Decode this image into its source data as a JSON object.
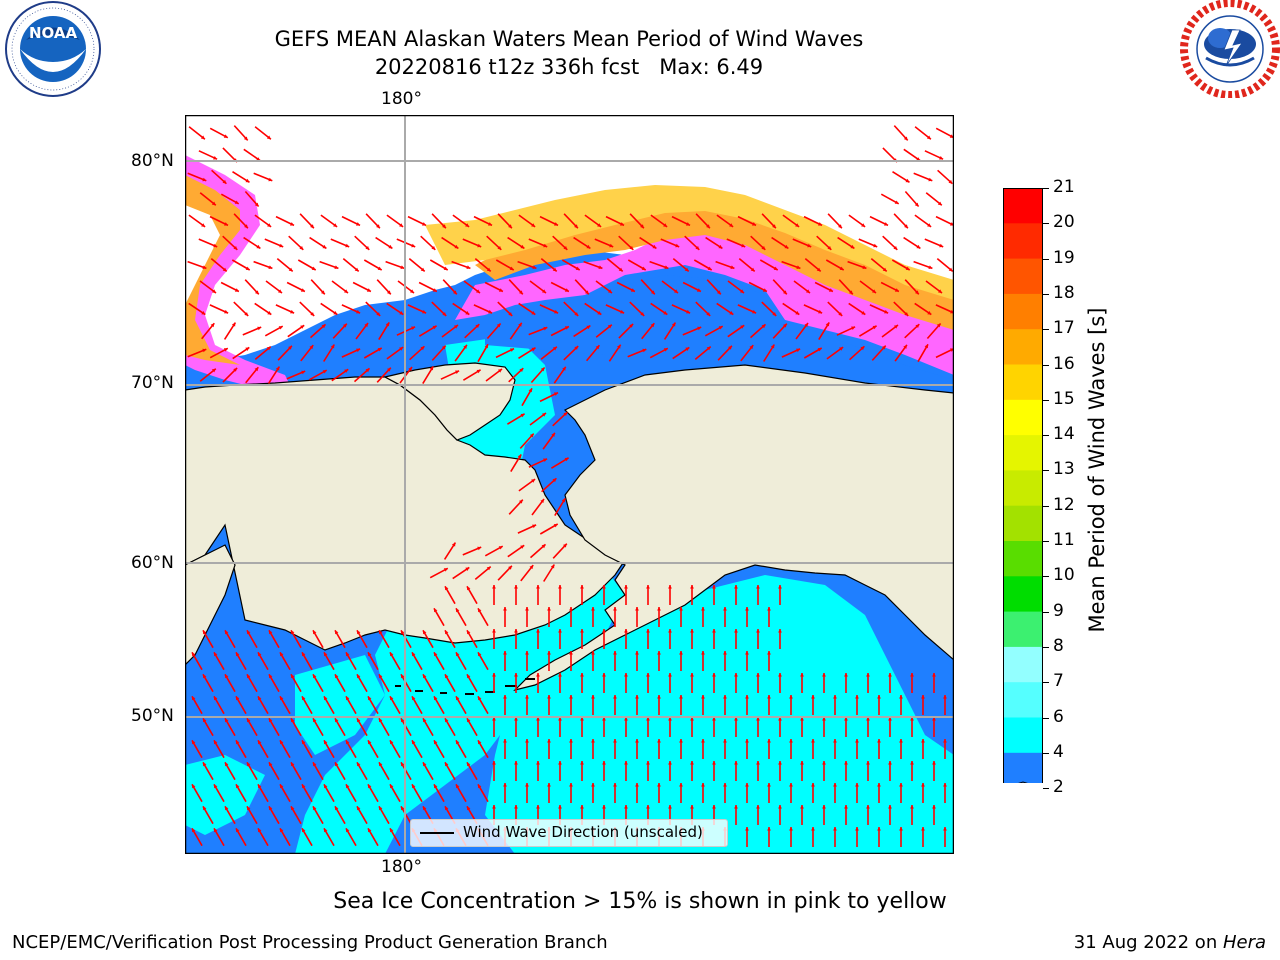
{
  "header": {
    "title_line1": "GEFS MEAN Alaskan Waters Mean Period of Wind Waves",
    "title_line2": "20220816 t12z 336h fcst   Max: 6.49"
  },
  "logos": {
    "left": {
      "icon": "noaa-logo-icon",
      "text": "NOAA",
      "ring_text": "NATIONAL OCEANIC AND ATMOSPHERIC ADMINISTRATION · U.S. DEPARTMENT OF COMMERCE"
    },
    "right": {
      "icon": "nws-logo-icon",
      "ring_text": "NATIONAL WEATHER SERVICE"
    }
  },
  "map": {
    "lon_label_top": "180°",
    "lon_label_bottom": "180°",
    "lat_labels": [
      "80°N",
      "70°N",
      "60°N",
      "50°N"
    ],
    "land_color": "#efedd9",
    "ocean_color": "#1f7fff",
    "arrow_color": "#ff0000",
    "legend_text": "Wind Wave Direction (unscaled)"
  },
  "colorbar": {
    "label": "Mean Period of Wind Waves [s]",
    "ticks": [
      "21",
      "20",
      "19",
      "18",
      "17",
      "16",
      "15",
      "14",
      "13",
      "12",
      "11",
      "10",
      "9",
      "8",
      "7",
      "6",
      "4",
      "2"
    ],
    "tick_levels": [
      21,
      20,
      19,
      18,
      17,
      16,
      15,
      14,
      13,
      12,
      11,
      10,
      9,
      8,
      7,
      6,
      4,
      2
    ],
    "colors": [
      "#ff0000",
      "#ff2a00",
      "#ff5500",
      "#ff7f00",
      "#ffaa00",
      "#ffd400",
      "#ffff00",
      "#e5f500",
      "#c8eb00",
      "#a3e100",
      "#59dd00",
      "#00dd00",
      "#3cf070",
      "#93ffff",
      "#55ffff",
      "#00ffff",
      "#1f7fff"
    ],
    "under_color": "#0000ff"
  },
  "notes": {
    "ice_note": "Sea Ice Concentration > 15% is shown in pink to yellow",
    "footer_left": "NCEP/EMC/Verification Post Processing Product Generation Branch",
    "footer_right_prefix": "31 Aug 2022 on ",
    "footer_right_italic": "Hera"
  }
}
